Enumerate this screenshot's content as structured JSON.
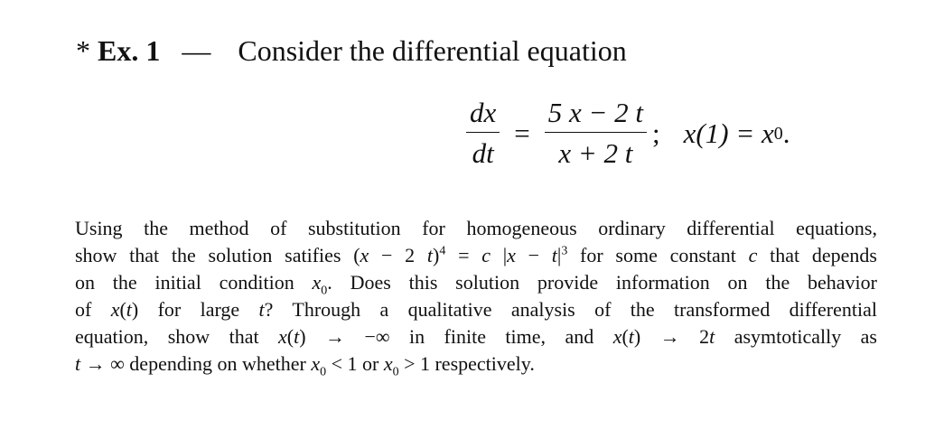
{
  "heading": {
    "star": "*",
    "label": "Ex. 1",
    "dash": "—",
    "title": "Consider the differential equation"
  },
  "equation": {
    "lhs_num": "dx",
    "lhs_den": "dt",
    "equals": "=",
    "rhs_num": "5 x − 2 t",
    "rhs_den": "x + 2 t",
    "semicolon": ";",
    "ic": "x(1) = x",
    "ic_sub": "0",
    "ic_end": "."
  },
  "paragraph": [
    [
      [
        "t",
        "Using the method of substitution for homogeneous ordinary differential equations,"
      ]
    ],
    [
      [
        "t",
        "show that the solution satifies ("
      ],
      [
        "m",
        "x"
      ],
      [
        "t",
        " − 2 "
      ],
      [
        "m",
        "t"
      ],
      [
        "t",
        ")"
      ],
      [
        "sup",
        "4"
      ],
      [
        "t",
        " = "
      ],
      [
        "m",
        "c"
      ],
      [
        "t",
        " |"
      ],
      [
        "m",
        "x"
      ],
      [
        "t",
        " − "
      ],
      [
        "m",
        "t"
      ],
      [
        "t",
        "|"
      ],
      [
        "sup",
        "3"
      ],
      [
        "t",
        " for some constant "
      ],
      [
        "m",
        "c"
      ],
      [
        "t",
        " that depends"
      ]
    ],
    [
      [
        "t",
        "on the initial condition "
      ],
      [
        "m",
        "x"
      ],
      [
        "sub",
        "0"
      ],
      [
        "t",
        ". Does this solution provide information on the behavior"
      ]
    ],
    [
      [
        "t",
        "of "
      ],
      [
        "m",
        "x"
      ],
      [
        "t",
        "("
      ],
      [
        "m",
        "t"
      ],
      [
        "t",
        ") for large "
      ],
      [
        "m",
        "t"
      ],
      [
        "t",
        "? Through a qualitative analysis of the transformed differential"
      ]
    ],
    [
      [
        "t",
        "equation, show that "
      ],
      [
        "m",
        "x"
      ],
      [
        "t",
        "("
      ],
      [
        "m",
        "t"
      ],
      [
        "t",
        ") → −∞ in finite time, and "
      ],
      [
        "m",
        "x"
      ],
      [
        "t",
        "("
      ],
      [
        "m",
        "t"
      ],
      [
        "t",
        ") → 2"
      ],
      [
        "m",
        "t"
      ],
      [
        "t",
        " asymtotically as"
      ]
    ],
    [
      [
        "m",
        "t"
      ],
      [
        "t",
        " → ∞ depending on whether "
      ],
      [
        "m",
        "x"
      ],
      [
        "sub",
        "0"
      ],
      [
        "t",
        " < 1 or "
      ],
      [
        "m",
        "x"
      ],
      [
        "sub",
        "0"
      ],
      [
        "t",
        " > 1 respectively."
      ]
    ]
  ]
}
